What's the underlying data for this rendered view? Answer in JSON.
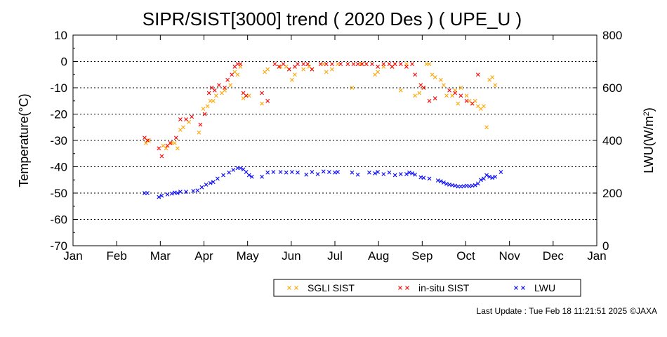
{
  "chart_data": {
    "type": "scatter",
    "title": "SIPR/SIST[3000] trend ( 2020 Des ) ( UPE_U )",
    "xlabel": "",
    "ylabel": "Temperature(°C)",
    "y2label_prefix": "LWU(W/m",
    "y2label_sup": "2",
    "y2label_suffix": ")",
    "categories": [
      "Jan",
      "Feb",
      "Mar",
      "Apr",
      "May",
      "Jun",
      "Jul",
      "Aug",
      "Sep",
      "Oct",
      "Nov",
      "Dec",
      "Jan"
    ],
    "xlim_day_of_year": [
      1,
      367
    ],
    "ylim": [
      -70,
      10
    ],
    "y2lim": [
      0,
      800
    ],
    "yticks": [
      10,
      0,
      -10,
      -20,
      -30,
      -40,
      -50,
      -60,
      -70
    ],
    "y2ticks": [
      800,
      600,
      400,
      200,
      0
    ],
    "grid": "horizontal dotted",
    "legend_position": "bottom-right",
    "series": [
      {
        "name": "SGLI SIST",
        "color": "#FFA500",
        "axis": "left",
        "x_day_of_year": [
          52,
          54,
          64,
          66,
          70,
          72,
          74,
          76,
          78,
          82,
          89,
          92,
          95,
          97,
          99,
          101,
          105,
          107,
          111,
          114,
          116,
          118,
          120,
          122,
          124,
          133,
          135,
          137,
          146,
          150,
          152,
          154,
          156,
          162,
          166,
          168,
          176,
          178,
          182,
          186,
          196,
          202,
          206,
          212,
          214,
          218,
          224,
          226,
          230,
          234,
          240,
          243,
          246,
          248,
          250,
          252,
          254,
          258,
          260,
          262,
          266,
          268,
          270,
          272,
          276,
          278,
          280,
          282,
          284,
          286,
          288,
          290,
          292,
          294,
          296
        ],
        "values": [
          -31,
          -30,
          -32,
          -33,
          -31,
          -31,
          -33,
          -26,
          -25,
          -23,
          -27,
          -18,
          -17,
          -15,
          -15,
          -13,
          -12,
          -11,
          -9,
          -4,
          -5,
          -2,
          -14,
          -13,
          -13,
          -16,
          -4,
          -3,
          -2,
          -2,
          -3,
          -7,
          -5,
          -3,
          -2,
          -3,
          -1,
          -4,
          -3,
          -1,
          -10,
          -1,
          -1,
          -5,
          -4,
          -2,
          -2,
          -1,
          -11,
          -1,
          -13,
          -12,
          -10,
          -1,
          -1,
          -5,
          -6,
          -7,
          -9,
          -13,
          -13,
          -11,
          -16,
          -10,
          -13,
          -15,
          -16,
          -15,
          -17,
          -18,
          -17,
          -25,
          -7,
          -6,
          -9
        ]
      },
      {
        "name": "in-situ SIST",
        "color": "#FF0000",
        "axis": "left",
        "x_day_of_year": [
          51,
          53,
          61,
          63,
          67,
          69,
          73,
          76,
          80,
          84,
          90,
          93,
          96,
          98,
          100,
          103,
          107,
          109,
          112,
          114,
          116,
          118,
          120,
          122,
          133,
          137,
          142,
          145,
          148,
          152,
          156,
          158,
          162,
          165,
          168,
          174,
          178,
          182,
          188,
          193,
          197,
          200,
          203,
          206,
          210,
          214,
          218,
          222,
          224,
          226,
          230,
          234,
          238,
          240,
          244,
          246,
          250,
          254,
          264,
          268,
          272,
          276,
          280,
          284
        ],
        "values": [
          -29,
          -30,
          -33,
          -36,
          -32,
          -31,
          -29,
          -22,
          -22,
          -21,
          -24,
          -20,
          -12,
          -10,
          -11,
          -9,
          -10,
          -7,
          -5,
          -2,
          -1,
          -1,
          -12,
          -13,
          -12,
          -15,
          -1,
          -2,
          -1,
          -3,
          -2,
          -1,
          -1,
          -1,
          -3,
          -1,
          -1,
          -1,
          -1,
          -1,
          -1,
          -1,
          -1,
          -1,
          -1,
          -2,
          -1,
          -1,
          -2,
          -1,
          -1,
          -2,
          -1,
          -5,
          -9,
          -10,
          -15,
          -14,
          -11,
          -12,
          -13,
          -15,
          -16,
          -5
        ]
      },
      {
        "name": "LWU",
        "color": "#0000FF",
        "axis": "right",
        "x_day_of_year": [
          51,
          53,
          61,
          63,
          67,
          70,
          72,
          74,
          76,
          80,
          85,
          88,
          91,
          94,
          97,
          99,
          102,
          106,
          110,
          113,
          116,
          118,
          120,
          122,
          124,
          126,
          133,
          137,
          141,
          146,
          150,
          154,
          158,
          164,
          168,
          172,
          176,
          180,
          184,
          186,
          196,
          200,
          208,
          212,
          214,
          218,
          222,
          226,
          230,
          234,
          236,
          238,
          240,
          244,
          246,
          250,
          256,
          258,
          260,
          262,
          264,
          266,
          268,
          270,
          272,
          274,
          276,
          278,
          280,
          282,
          284,
          286,
          288,
          290,
          292,
          294,
          296,
          300
        ],
        "values": [
          200,
          200,
          185,
          190,
          195,
          198,
          202,
          200,
          205,
          205,
          208,
          210,
          222,
          232,
          238,
          242,
          255,
          268,
          278,
          288,
          295,
          295,
          290,
          280,
          268,
          262,
          262,
          278,
          280,
          280,
          278,
          280,
          278,
          270,
          280,
          272,
          282,
          280,
          278,
          280,
          278,
          270,
          278,
          275,
          280,
          272,
          278,
          268,
          272,
          272,
          278,
          275,
          270,
          260,
          258,
          255,
          248,
          245,
          240,
          235,
          232,
          230,
          228,
          225,
          225,
          226,
          228,
          226,
          228,
          230,
          236,
          250,
          255,
          268,
          262,
          258,
          262,
          280
        ]
      }
    ]
  },
  "footer": {
    "last_update": "Last Update : Tue Feb 18 11:21:51 2025",
    "credit": "©JAXA"
  }
}
